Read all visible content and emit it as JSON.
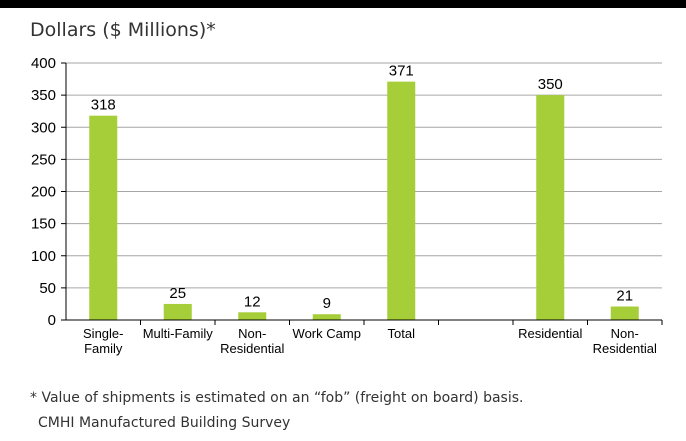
{
  "page": {
    "unit_label": "Dollars ($ Millions)*",
    "footnote": "* Value of shipments is estimated on an “fob” (freight on board) basis.",
    "source": "CMHI Manufactured Building Survey"
  },
  "chart_data": {
    "type": "bar",
    "title": "",
    "xlabel": "",
    "ylabel": "Dollars ($ Millions)*",
    "ylim": [
      0,
      400
    ],
    "yticks": [
      0,
      50,
      100,
      150,
      200,
      250,
      300,
      350,
      400
    ],
    "grid": true,
    "bar_color": "#a6ce39",
    "categories": [
      [
        "Single-",
        "Family"
      ],
      [
        "Multi-Family"
      ],
      [
        "Non-",
        "Residential"
      ],
      [
        "Work Camp"
      ],
      [
        "Total"
      ],
      [
        ""
      ],
      [
        "Residential"
      ],
      [
        "Non-",
        "Residential"
      ]
    ],
    "values": [
      318,
      25,
      12,
      9,
      371,
      null,
      350,
      21
    ]
  }
}
